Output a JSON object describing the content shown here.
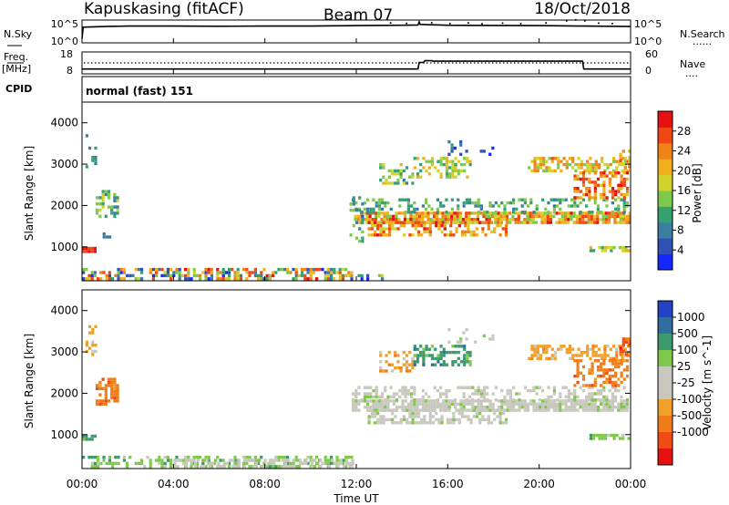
{
  "header": {
    "station": "Kapuskasing (fitACF)",
    "beam": "Beam 07",
    "date": "18/Oct/2018"
  },
  "noise_panel": {
    "left_label": "N.Sky",
    "right_label": "N.Search",
    "right_legend": "......",
    "ticks": [
      "10^5",
      "10^0"
    ],
    "sky_series": [
      {
        "t": 0.0,
        "v": 0.2
      },
      {
        "t": 0.05,
        "v": 0.75
      },
      {
        "t": 1.0,
        "v": 0.78
      },
      {
        "t": 2.0,
        "v": 0.8
      },
      {
        "t": 4.0,
        "v": 0.8
      },
      {
        "t": 6.0,
        "v": 0.79
      },
      {
        "t": 8.0,
        "v": 0.8
      },
      {
        "t": 10.0,
        "v": 0.8
      },
      {
        "t": 12.0,
        "v": 0.82
      },
      {
        "t": 14.0,
        "v": 0.84
      },
      {
        "t": 14.7,
        "v": 0.85
      },
      {
        "t": 14.75,
        "v": 1.0
      },
      {
        "t": 14.8,
        "v": 0.88
      },
      {
        "t": 16.0,
        "v": 0.84
      },
      {
        "t": 18.0,
        "v": 0.83
      },
      {
        "t": 20.0,
        "v": 0.82
      },
      {
        "t": 22.0,
        "v": 0.8
      },
      {
        "t": 24.0,
        "v": 0.78
      }
    ],
    "search_points": [
      {
        "t": 13.5,
        "v": 0.95
      },
      {
        "t": 14.2,
        "v": 0.93
      },
      {
        "t": 15.3,
        "v": 0.96
      },
      {
        "t": 16.1,
        "v": 0.92
      },
      {
        "t": 16.9,
        "v": 0.95
      },
      {
        "t": 17.5,
        "v": 0.91
      },
      {
        "t": 18.4,
        "v": 0.94
      },
      {
        "t": 19.2,
        "v": 0.92
      },
      {
        "t": 20.3,
        "v": 0.95
      },
      {
        "t": 21.2,
        "v": 1.05
      },
      {
        "t": 21.6,
        "v": 1.1
      },
      {
        "t": 22.0,
        "v": 1.05
      },
      {
        "t": 22.6,
        "v": 0.94
      },
      {
        "t": 23.2,
        "v": 0.92
      }
    ]
  },
  "freq_panel": {
    "left_label_top": "Freq.",
    "left_label_bottom": "[MHz]",
    "left_ticks": [
      "18",
      "8"
    ],
    "right_label": "Nave",
    "right_legend": "....",
    "right_ticks": [
      "60",
      "0"
    ],
    "freq_steps": [
      {
        "t": 0.0,
        "v": 10.2
      },
      {
        "t": 14.7,
        "v": 10.2
      },
      {
        "t": 14.75,
        "v": 13.2
      },
      {
        "t": 14.95,
        "v": 13.2
      },
      {
        "t": 15.0,
        "v": 14.0
      },
      {
        "t": 15.3,
        "v": 14.0
      },
      {
        "t": 15.35,
        "v": 13.8
      },
      {
        "t": 21.9,
        "v": 13.8
      },
      {
        "t": 21.95,
        "v": 10.2
      },
      {
        "t": 24.0,
        "v": 10.2
      }
    ],
    "nave_level": 13.0
  },
  "cpid": {
    "label": "CPID",
    "value": "normal (fast) 151"
  },
  "chart_data": [
    {
      "type": "heatmap",
      "ylabel": "Slant Range [km]",
      "xlim": [
        0,
        24
      ],
      "ylim": [
        180,
        4500
      ],
      "yticks": [
        "1000",
        "2000",
        "3000",
        "4000"
      ],
      "ytick_values": [
        1000,
        2000,
        3000,
        4000
      ],
      "colorbar": {
        "label": "Power [dB]",
        "ticks": [
          "4",
          "8",
          "12",
          "16",
          "20",
          "24",
          "28"
        ],
        "tick_values": [
          4,
          8,
          12,
          16,
          20,
          24,
          28
        ],
        "range": [
          0,
          32
        ],
        "colors": [
          "#1428ff",
          "#2f50b4",
          "#3c7ea0",
          "#35a070",
          "#7ec84b",
          "#d2d22c",
          "#f0b01e",
          "#f08218",
          "#f04614",
          "#e61010"
        ]
      },
      "regions": [
        {
          "t0": 0.0,
          "t1": 0.55,
          "r0": 850,
          "r1": 950,
          "vmin": 26,
          "vmax": 30,
          "density": 0.95
        },
        {
          "t0": 0.15,
          "t1": 0.55,
          "r0": 2900,
          "r1": 3700,
          "vmin": 6,
          "vmax": 14,
          "density": 0.25
        },
        {
          "t0": 0.6,
          "t1": 1.6,
          "r0": 1700,
          "r1": 2300,
          "vmin": 8,
          "vmax": 18,
          "density": 0.5
        },
        {
          "t0": 0.9,
          "t1": 1.2,
          "r0": 1200,
          "r1": 1300,
          "vmin": 4,
          "vmax": 10,
          "density": 0.6
        },
        {
          "t0": 0.0,
          "t1": 11.8,
          "r0": 190,
          "r1": 420,
          "vmin": 2,
          "vmax": 30,
          "density": 0.55
        },
        {
          "t0": 11.8,
          "t1": 13.2,
          "r0": 190,
          "r1": 300,
          "vmin": 2,
          "vmax": 20,
          "density": 0.2
        },
        {
          "t0": 11.9,
          "t1": 23.9,
          "r0": 1550,
          "r1": 1800,
          "vmin": 14,
          "vmax": 30,
          "density": 0.85
        },
        {
          "t0": 12.5,
          "t1": 18.5,
          "r0": 1250,
          "r1": 1550,
          "vmin": 16,
          "vmax": 30,
          "density": 0.55
        },
        {
          "t0": 11.8,
          "t1": 23.9,
          "r0": 1800,
          "r1": 2100,
          "vmin": 8,
          "vmax": 16,
          "density": 0.35
        },
        {
          "t0": 11.7,
          "t1": 12.3,
          "r0": 1100,
          "r1": 2200,
          "vmin": 4,
          "vmax": 16,
          "density": 0.35
        },
        {
          "t0": 13.0,
          "t1": 14.5,
          "r0": 2500,
          "r1": 3000,
          "vmin": 8,
          "vmax": 20,
          "density": 0.45
        },
        {
          "t0": 14.5,
          "t1": 17.0,
          "r0": 2650,
          "r1": 3100,
          "vmin": 10,
          "vmax": 22,
          "density": 0.5
        },
        {
          "t0": 16.0,
          "t1": 18.0,
          "r0": 3200,
          "r1": 3500,
          "vmin": 2,
          "vmax": 10,
          "density": 0.2
        },
        {
          "t0": 19.5,
          "t1": 23.9,
          "r0": 2800,
          "r1": 3100,
          "vmin": 14,
          "vmax": 26,
          "density": 0.55
        },
        {
          "t0": 21.5,
          "t1": 23.8,
          "r0": 2150,
          "r1": 2800,
          "vmin": 18,
          "vmax": 30,
          "density": 0.55
        },
        {
          "t0": 22.2,
          "t1": 23.9,
          "r0": 870,
          "r1": 960,
          "vmin": 10,
          "vmax": 22,
          "density": 0.7
        },
        {
          "t0": 23.5,
          "t1": 23.95,
          "r0": 2900,
          "r1": 3300,
          "vmin": 14,
          "vmax": 26,
          "density": 0.5
        }
      ]
    },
    {
      "type": "heatmap",
      "ylabel": "Slant Range [km]",
      "xlabel": "Time UT",
      "xlim": [
        0,
        24
      ],
      "ylim": [
        180,
        4500
      ],
      "xticks": [
        "00:00",
        "04:00",
        "08:00",
        "12:00",
        "16:00",
        "20:00",
        "00:00"
      ],
      "xtick_values": [
        0,
        4,
        8,
        12,
        16,
        20,
        24
      ],
      "yticks": [
        "1000",
        "2000",
        "3000",
        "4000"
      ],
      "ytick_values": [
        1000,
        2000,
        3000,
        4000
      ],
      "colorbar": {
        "label": "Velocity [m s^-1]",
        "ticks": [
          "1000",
          "500",
          "100",
          "25",
          "-25",
          "-100",
          "-500",
          "-1000"
        ],
        "colors": [
          "#2342c8",
          "#2f6e9e",
          "#3c9a6e",
          "#7ec84b",
          "#c8c8be",
          "#c8c8be",
          "#f0a028",
          "#f07d19",
          "#f04b14",
          "#e61010"
        ]
      },
      "regions": [
        {
          "t0": 0.0,
          "t1": 0.55,
          "r0": 850,
          "r1": 950,
          "c": 2,
          "density": 0.9
        },
        {
          "t0": 0.15,
          "t1": 0.55,
          "r0": 2900,
          "r1": 3700,
          "c": 6,
          "density": 0.25
        },
        {
          "t0": 0.6,
          "t1": 1.6,
          "r0": 1700,
          "r1": 2300,
          "c": 7,
          "density": 0.55
        },
        {
          "t0": 0.0,
          "t1": 11.8,
          "r0": 190,
          "r1": 420,
          "c": 3,
          "density": 0.45
        },
        {
          "t0": 4.0,
          "t1": 11.8,
          "r0": 190,
          "r1": 380,
          "c": 4,
          "density": 0.5
        },
        {
          "t0": 11.8,
          "t1": 23.9,
          "r0": 1550,
          "r1": 1800,
          "c": 4,
          "density": 0.85
        },
        {
          "t0": 12.5,
          "t1": 18.5,
          "r0": 1250,
          "r1": 1550,
          "c": 4,
          "density": 0.55
        },
        {
          "t0": 11.8,
          "t1": 23.9,
          "r0": 1800,
          "r1": 2100,
          "c": 4,
          "density": 0.35
        },
        {
          "t0": 13.0,
          "t1": 14.5,
          "r0": 2500,
          "r1": 3000,
          "c": 6,
          "density": 0.45
        },
        {
          "t0": 14.5,
          "t1": 17.0,
          "r0": 2650,
          "r1": 3100,
          "c": 2,
          "density": 0.45
        },
        {
          "t0": 16.0,
          "t1": 18.0,
          "r0": 3200,
          "r1": 3500,
          "c": 4,
          "density": 0.2
        },
        {
          "t0": 19.5,
          "t1": 23.9,
          "r0": 2800,
          "r1": 3100,
          "c": 6,
          "density": 0.5
        },
        {
          "t0": 21.5,
          "t1": 23.8,
          "r0": 2150,
          "r1": 2800,
          "c": 7,
          "density": 0.55
        },
        {
          "t0": 22.2,
          "t1": 23.9,
          "r0": 870,
          "r1": 960,
          "c": 3,
          "density": 0.7
        },
        {
          "t0": 23.5,
          "t1": 23.95,
          "r0": 2900,
          "r1": 3300,
          "c": 8,
          "density": 0.5
        }
      ]
    }
  ]
}
